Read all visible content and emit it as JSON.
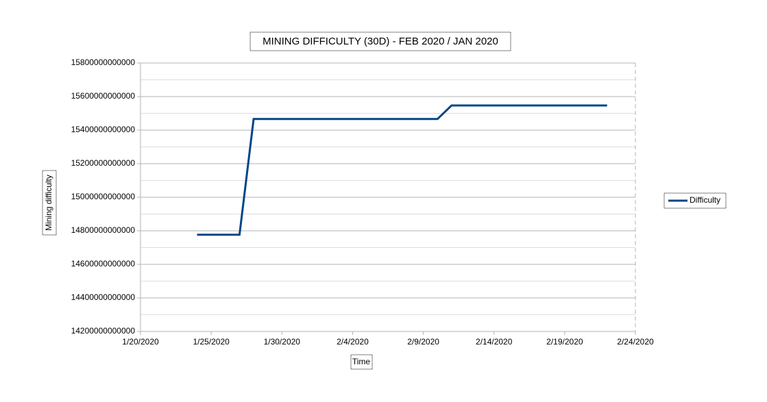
{
  "chart_data": {
    "type": "line",
    "title": "MINING DIFFICULTY (30D) - FEB 2020 / JAN 2020",
    "x_label": "Time",
    "y_label": "Mining difficulty",
    "x": [
      "1/24/2020",
      "1/27/2020",
      "1/28/2020",
      "2/10/2020",
      "2/11/2020",
      "2/22/2020"
    ],
    "series": [
      {
        "name": "Difficulty",
        "color": "#004586",
        "values": [
          14776367535688,
          14776367535688,
          15466098935554,
          15466098935554,
          15546745765549,
          15546745765549
        ]
      }
    ],
    "xlim": [
      "1/20/2020",
      "2/24/2020"
    ],
    "xticks": [
      "1/20/2020",
      "1/25/2020",
      "1/30/2020",
      "2/4/2020",
      "2/9/2020",
      "2/14/2020",
      "2/19/2020",
      "2/24/2020"
    ],
    "ylim": [
      14200000000000,
      15800000000000
    ],
    "yticks": [
      14200000000000,
      14400000000000,
      14600000000000,
      14800000000000,
      15000000000000,
      15200000000000,
      15400000000000,
      15600000000000,
      15800000000000
    ],
    "grid": true,
    "legend": "right"
  }
}
